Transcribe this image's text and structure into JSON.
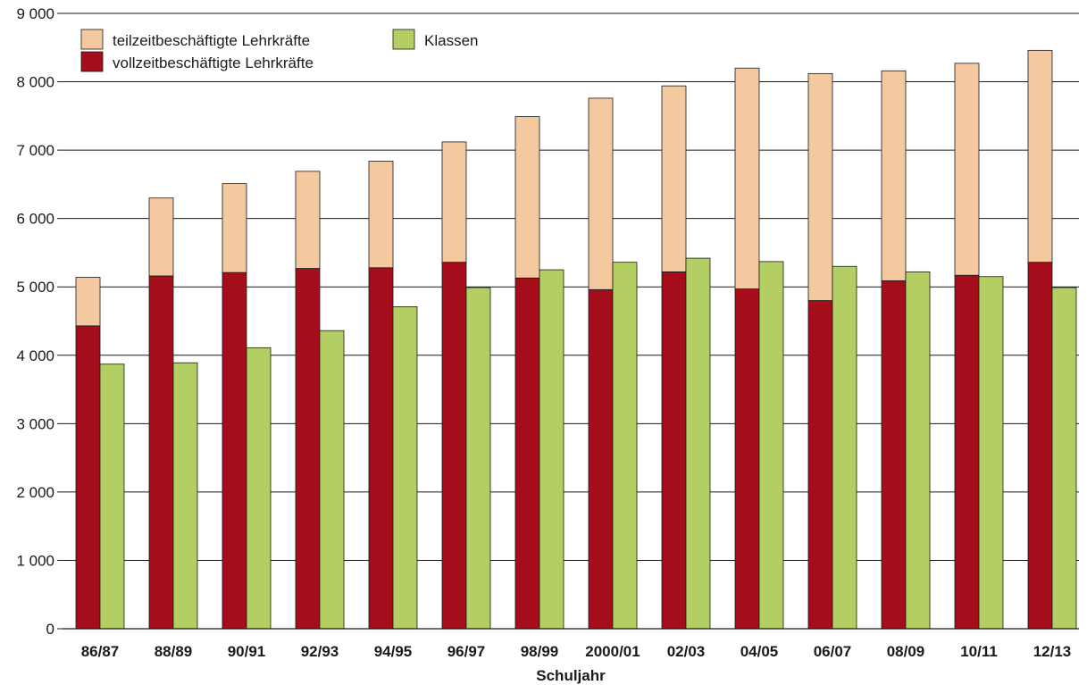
{
  "chart_data": {
    "type": "bar",
    "stacking": "stacked full-time + part-time teachers, with classes as adjacent bar",
    "xlabel": "Schuljahr",
    "ylabel": "",
    "ylim": [
      0,
      9000
    ],
    "yticks": [
      0,
      1000,
      2000,
      3000,
      4000,
      5000,
      6000,
      7000,
      8000,
      9000
    ],
    "ytick_labels": [
      "0",
      "1 000",
      "2 000",
      "3 000",
      "4 000",
      "5 000",
      "6 000",
      "7 000",
      "8 000",
      "9 000"
    ],
    "grid": "horizontal",
    "legend_position": "top-left",
    "categories": [
      "86/87",
      "88/89",
      "90/91",
      "92/93",
      "94/95",
      "96/97",
      "98/99",
      "2000/01",
      "02/03",
      "04/05",
      "06/07",
      "08/09",
      "10/11",
      "12/13"
    ],
    "series": [
      {
        "name": "vollzeitbeschäftigte Lehrkräfte",
        "color": "#a50d1a",
        "stack": "teachers",
        "values": [
          4430,
          5160,
          5210,
          5270,
          5280,
          5360,
          5130,
          4960,
          5220,
          4970,
          4800,
          5090,
          5170,
          5360
        ]
      },
      {
        "name": "teilzeitbeschäftigte Lehrkräfte",
        "color": "#f5c9a0",
        "stack": "teachers",
        "values": [
          710,
          1140,
          1300,
          1420,
          1560,
          1760,
          2360,
          2800,
          2720,
          3230,
          3320,
          3070,
          3100,
          3100
        ]
      },
      {
        "name": "Klassen",
        "color": "#b3cf63",
        "stack": "classes",
        "values": [
          3870,
          3890,
          4110,
          4360,
          4710,
          4990,
          5250,
          5360,
          5420,
          5370,
          5300,
          5220,
          5150,
          4990
        ]
      }
    ]
  }
}
